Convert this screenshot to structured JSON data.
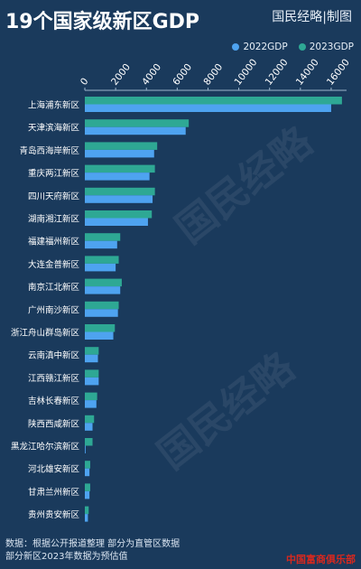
{
  "header": {
    "title": "19个国家级新区GDP",
    "brand": "国民经略|制图"
  },
  "colors": {
    "background": "#1a3a5c",
    "series_2022": "#4ea3f0",
    "series_2023": "#2ea894"
  },
  "chart_data": {
    "type": "bar",
    "orientation": "horizontal",
    "title": "19个国家级新区GDP",
    "categories": [
      "上海浦东新区",
      "天津滨海新区",
      "青岛西海岸新区",
      "重庆两江新区",
      "四川天府新区",
      "湖南湘江新区",
      "福建福州新区",
      "大连金普新区",
      "南京江北新区",
      "广州南沙新区",
      "浙江舟山群岛新区",
      "云南滇中新区",
      "江西赣江新区",
      "吉林长春新区",
      "陕西西咸新区",
      "黑龙江哈尔滨新区",
      "河北雄安新区",
      "甘肃兰州新区",
      "贵州贵安新区"
    ],
    "series": [
      {
        "name": "2022GDP",
        "values": [
          16000,
          6550,
          4500,
          4200,
          4400,
          4100,
          2100,
          2000,
          2300,
          2150,
          1850,
          850,
          900,
          750,
          500,
          50,
          300,
          300,
          200
        ]
      },
      {
        "name": "2023GDP",
        "values": [
          16700,
          6750,
          4700,
          4550,
          4550,
          4350,
          2300,
          2200,
          2400,
          2200,
          1950,
          900,
          900,
          800,
          600,
          500,
          350,
          350,
          250
        ]
      }
    ],
    "xticks": [
      "0",
      "2000",
      "4000",
      "6000",
      "8000",
      "10000",
      "12000",
      "14000",
      "16000"
    ],
    "xlim": [
      0,
      17000
    ],
    "legend_position": "top-right",
    "grid": false
  },
  "footer": {
    "line1": "数据：根据公开报道整理 部分为直管区数据",
    "line2": "部分新区2023年数据为预估值",
    "brand": "中国富商俱乐部"
  }
}
